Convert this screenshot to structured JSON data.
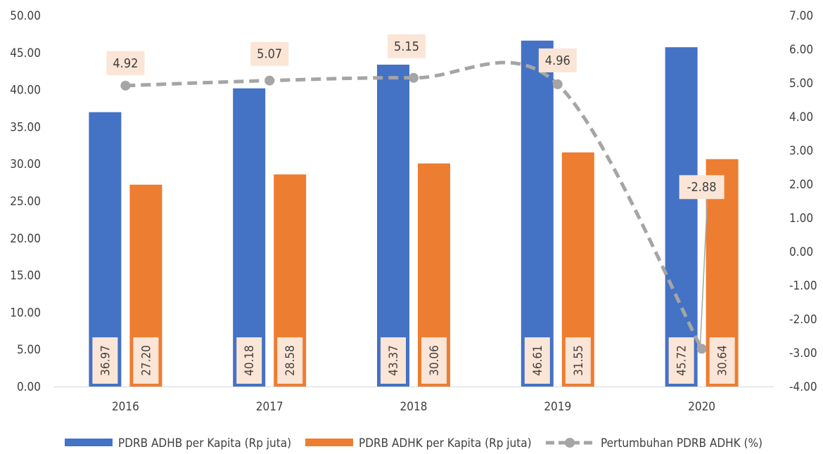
{
  "chart_data": {
    "type": "bar",
    "title": "",
    "xlabel": "",
    "ylabel": "",
    "categories": [
      "2016",
      "2017",
      "2018",
      "2019",
      "2020"
    ],
    "ylim": [
      0,
      50
    ],
    "y_ticks": [
      "0.00",
      "5.00",
      "10.00",
      "15.00",
      "20.00",
      "25.00",
      "30.00",
      "35.00",
      "40.00",
      "45.00",
      "50.00"
    ],
    "y2lim": [
      -4,
      7
    ],
    "y2_ticks": [
      "-4.00",
      "-3.00",
      "-2.00",
      "-1.00",
      "0.00",
      "1.00",
      "2.00",
      "3.00",
      "4.00",
      "5.00",
      "6.00",
      "7.00"
    ],
    "series": [
      {
        "name": "PDRB ADHB per Kapita (Rp juta)",
        "type": "bar",
        "axis": "left",
        "color": "#4472C4",
        "values": [
          36.97,
          40.18,
          43.37,
          46.61,
          45.72
        ],
        "labels": [
          "36.97",
          "40.18",
          "43.37",
          "46.61",
          "45.72"
        ]
      },
      {
        "name": "PDRB ADHK per Kapita (Rp juta)",
        "type": "bar",
        "axis": "left",
        "color": "#ED7D31",
        "values": [
          27.2,
          28.58,
          30.06,
          31.55,
          30.64
        ],
        "labels": [
          "27.20",
          "28.58",
          "30.06",
          "31.55",
          "30.64"
        ]
      },
      {
        "name": "Pertumbuhan PDRB ADHK (%)",
        "type": "line",
        "axis": "right",
        "style": "dashed-smooth",
        "color": "#A5A5A5",
        "values": [
          4.92,
          5.07,
          5.15,
          4.96,
          -2.88
        ],
        "labels": [
          "4.92",
          "5.07",
          "5.15",
          "4.96",
          "-2.88"
        ]
      }
    ],
    "legend_position": "bottom",
    "grid": false,
    "label_box_color": "#FBE5D6"
  }
}
